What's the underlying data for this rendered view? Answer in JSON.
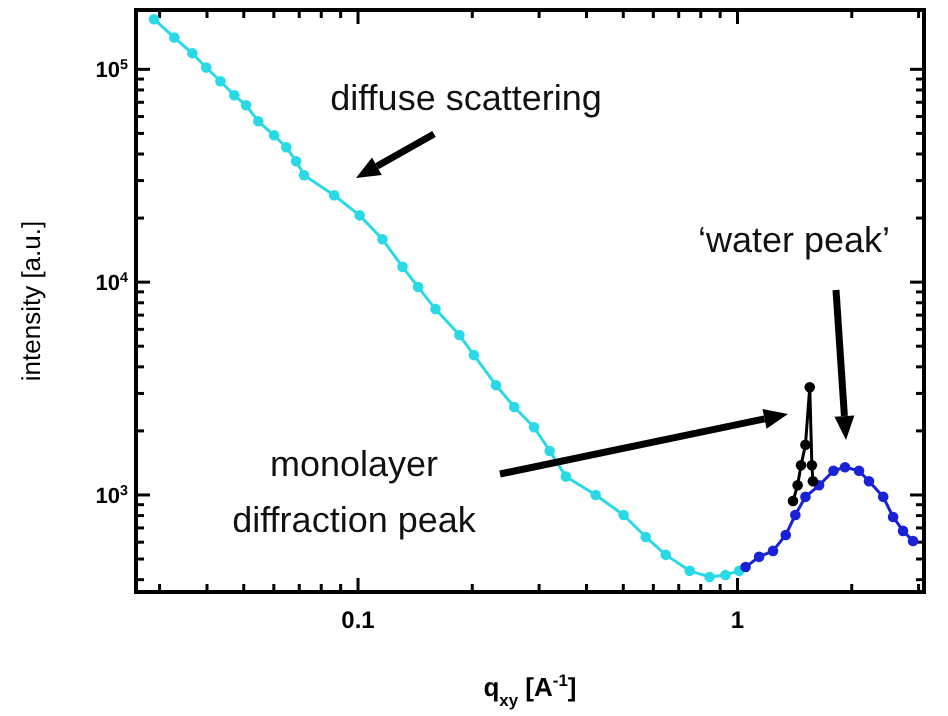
{
  "chart_data": {
    "type": "line",
    "xlabel": "q$_{xy}$ [A$^{-1}$]",
    "ylabel": "intensity [a.u.]",
    "log": "xy",
    "marker": "circle",
    "line_style": "solid",
    "xlim": [
      0.026,
      3.1
    ],
    "ylim": [
      350,
      190000
    ],
    "xticks": [
      {
        "value": 0.03,
        "label": null
      },
      {
        "value": 0.04,
        "label": null
      },
      {
        "value": 0.05,
        "label": null
      },
      {
        "value": 0.06,
        "label": null
      },
      {
        "value": 0.07,
        "label": null
      },
      {
        "value": 0.08,
        "label": null
      },
      {
        "value": 0.09,
        "label": null
      },
      0.1,
      {
        "value": 0.2,
        "label": null
      },
      {
        "value": 0.3,
        "label": null
      },
      {
        "value": 0.4,
        "label": null
      },
      {
        "value": 0.5,
        "label": null
      },
      {
        "value": 0.6,
        "label": null
      },
      {
        "value": 0.7,
        "label": null
      },
      {
        "value": 0.8,
        "label": null
      },
      {
        "value": 0.9,
        "label": null
      },
      1,
      {
        "value": 2,
        "label": null
      },
      {
        "value": 3,
        "label": null
      }
    ],
    "yticks": [
      {
        "value": 400,
        "label": null
      },
      {
        "value": 500,
        "label": null
      },
      {
        "value": 600,
        "label": null
      },
      {
        "value": 700,
        "label": null
      },
      {
        "value": 800,
        "label": null
      },
      {
        "value": 900,
        "label": null
      },
      {
        "value": 1000,
        "label": "10$^{3}$"
      },
      {
        "value": 2000,
        "label": null
      },
      {
        "value": 3000,
        "label": null
      },
      {
        "value": 4000,
        "label": null
      },
      {
        "value": 5000,
        "label": null
      },
      {
        "value": 6000,
        "label": null
      },
      {
        "value": 7000,
        "label": null
      },
      {
        "value": 8000,
        "label": null
      },
      {
        "value": 9000,
        "label": null
      },
      {
        "value": 10000,
        "label": "10$^{4}$"
      },
      {
        "value": 20000,
        "label": null
      },
      {
        "value": 30000,
        "label": null
      },
      {
        "value": 40000,
        "label": null
      },
      {
        "value": 50000,
        "label": null
      },
      {
        "value": 60000,
        "label": null
      },
      {
        "value": 70000,
        "label": null
      },
      {
        "value": 80000,
        "label": null
      },
      {
        "value": 90000,
        "label": null
      },
      {
        "value": 100000,
        "label": "10$^{5}$"
      }
    ],
    "series": [
      {
        "color": "#2ad9e6",
        "x": [
          0.029,
          0.0328,
          0.0366,
          0.0398,
          0.0434,
          0.0472,
          0.0507,
          0.0546,
          0.0601,
          0.0647,
          0.0687,
          0.0721,
          0.0865,
          0.101,
          0.116,
          0.131,
          0.144,
          0.16,
          0.185,
          0.202,
          0.231,
          0.258,
          0.291,
          0.32,
          0.353,
          0.423,
          0.501,
          0.573,
          0.647,
          0.748,
          0.844,
          0.93,
          1.01
        ],
        "values": [
          172000,
          141000,
          119000,
          102000,
          87900,
          75500,
          67800,
          57000,
          49000,
          43000,
          37000,
          31800,
          25600,
          20600,
          15900,
          11800,
          9480,
          7470,
          5640,
          4540,
          3280,
          2590,
          2080,
          1610,
          1220,
          1000,
          805,
          635,
          523,
          440,
          412,
          421,
          440
        ]
      },
      {
        "color": "#1a22d8",
        "x": [
          1.05,
          1.14,
          1.24,
          1.34,
          1.42,
          1.51,
          1.64,
          1.79,
          1.92,
          2.09,
          2.22,
          2.42,
          2.57,
          2.73,
          2.9
        ],
        "values": [
          459,
          512,
          546,
          649,
          805,
          980,
          1110,
          1300,
          1350,
          1300,
          1160,
          980,
          788,
          678,
          608
        ]
      },
      {
        "color": "#000000",
        "x": [
          1.4,
          1.44,
          1.47,
          1.51,
          1.55,
          1.57,
          1.58
        ],
        "values": [
          937,
          1110,
          1380,
          1720,
          3210,
          1380,
          1160
        ]
      }
    ],
    "annotations": [
      "diffuse scattering",
      "‘water peak’",
      "monolayer diffraction peak"
    ]
  }
}
